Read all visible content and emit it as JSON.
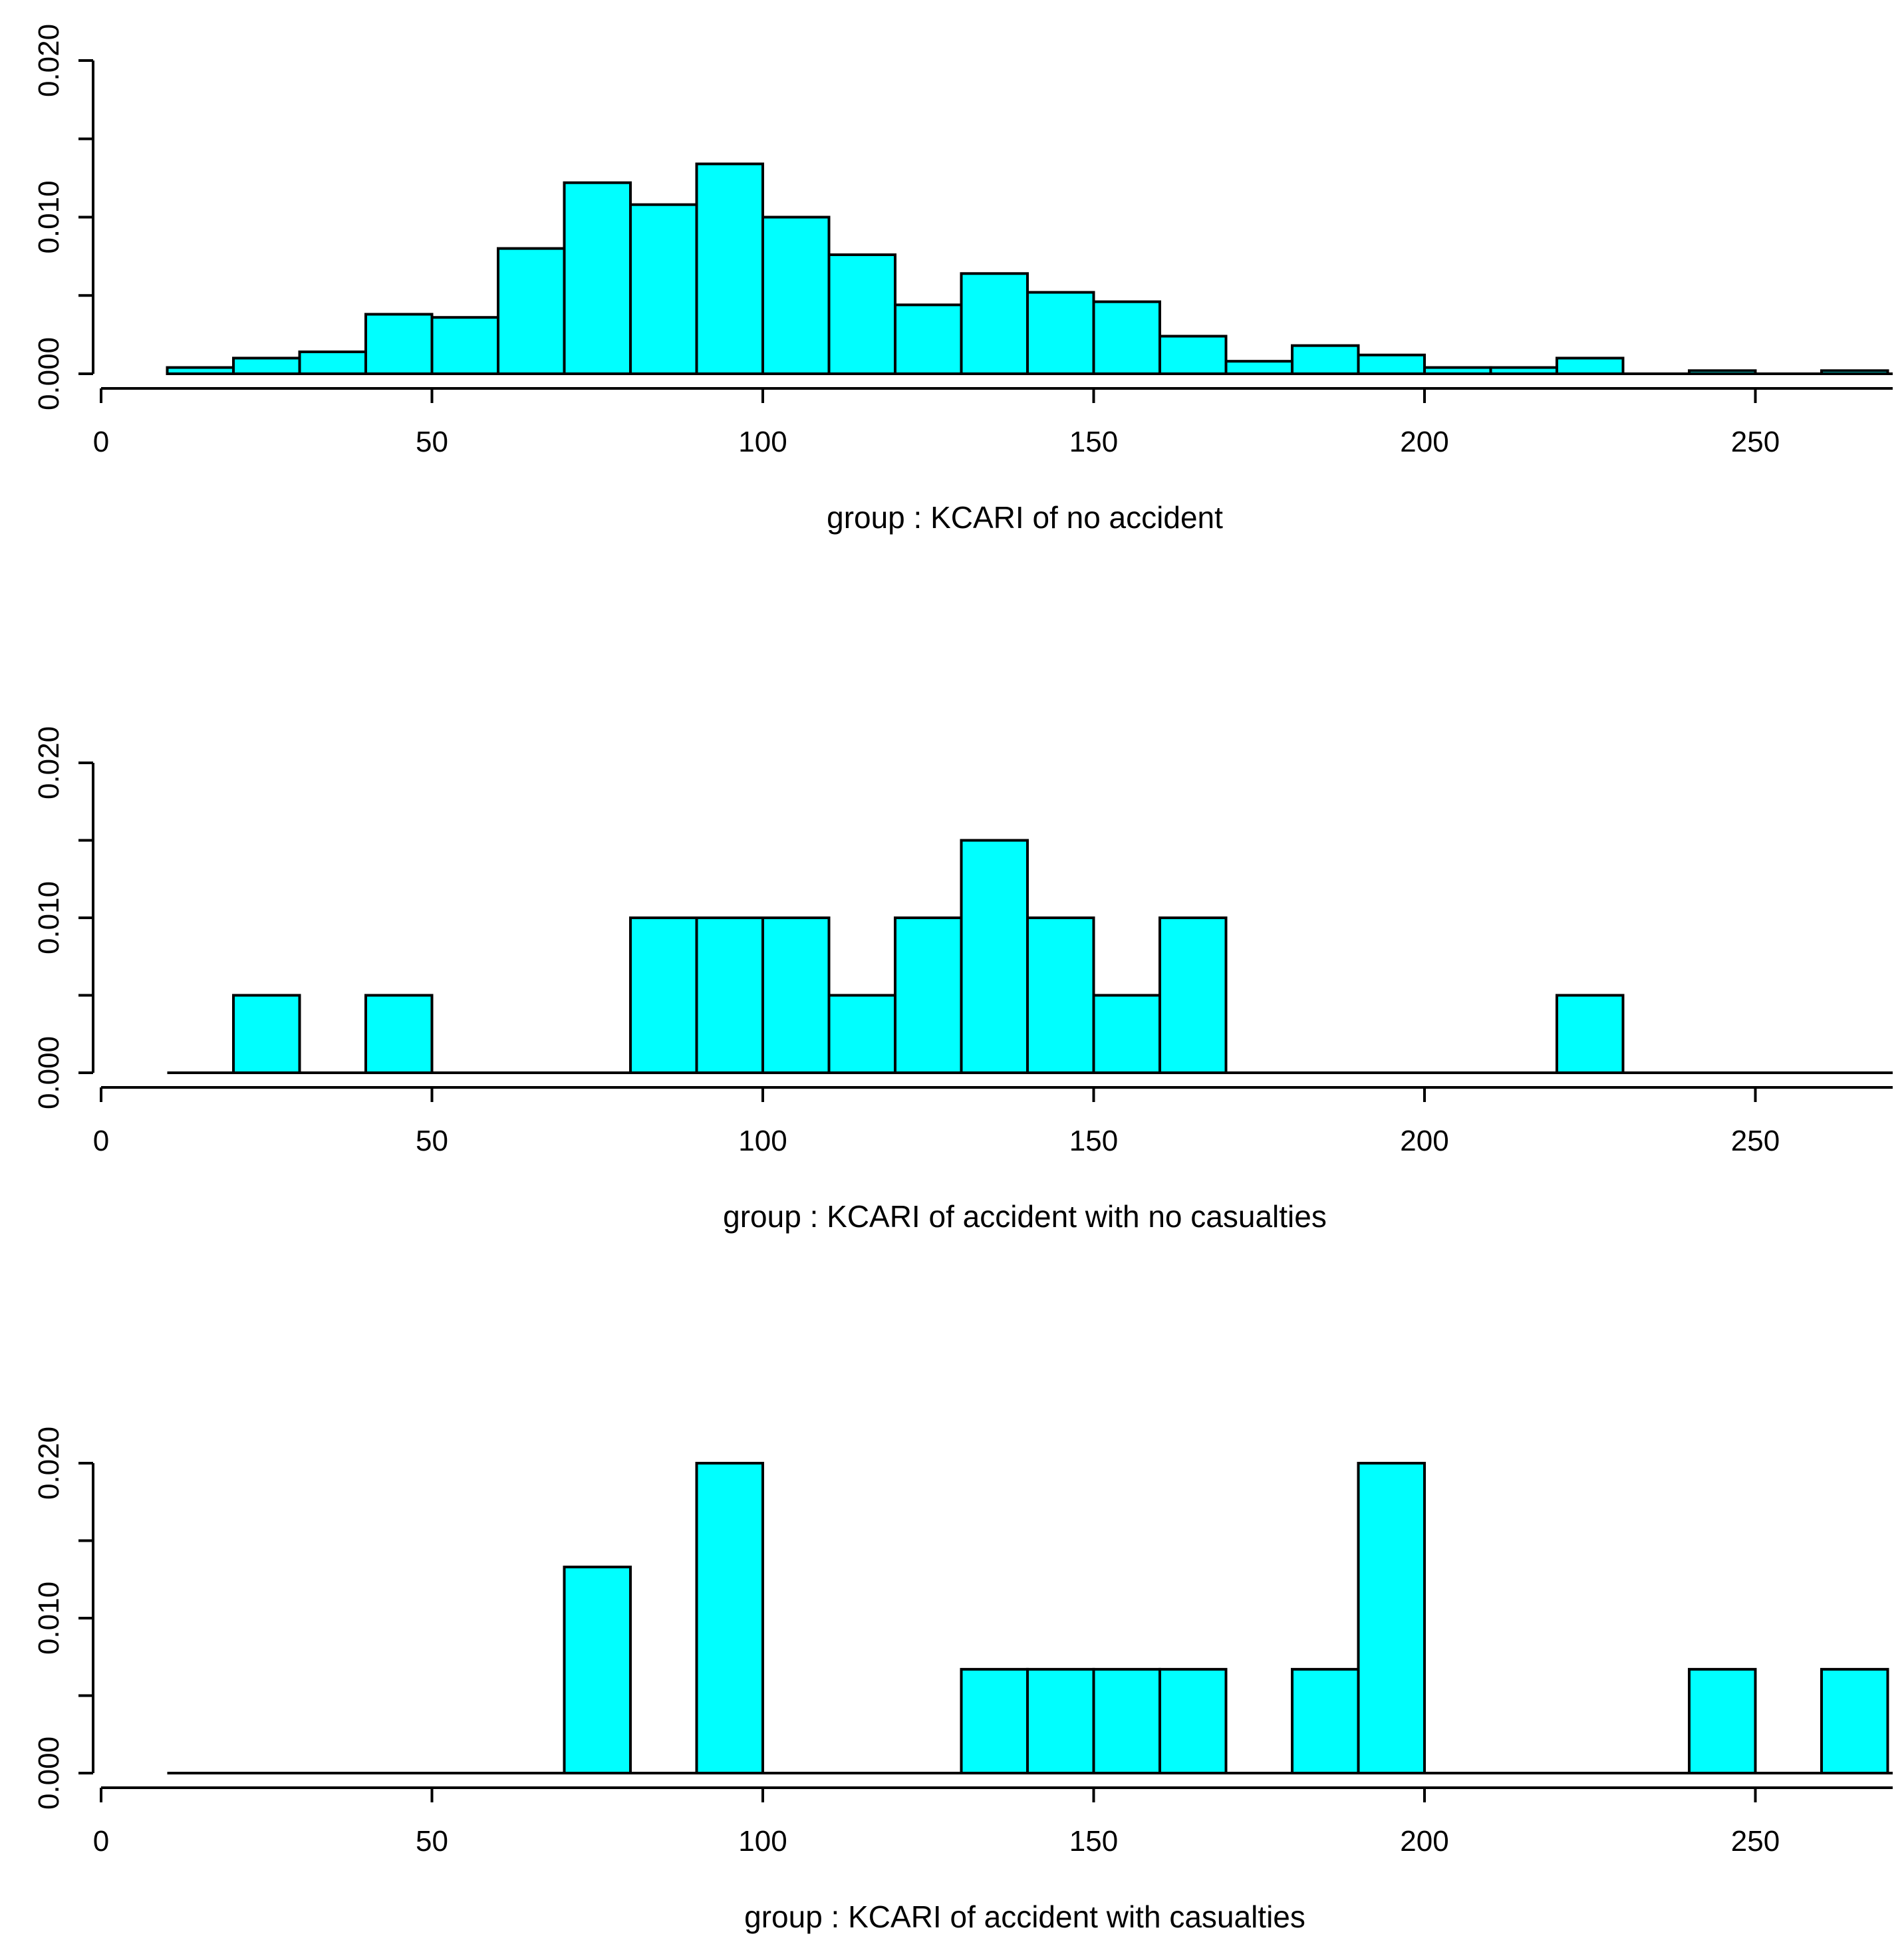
{
  "chart_data": [
    {
      "type": "bar",
      "subtype": "histogram",
      "title": "",
      "xlabel": "group :  KCARI of no accident",
      "ylabel": "",
      "xlim": [
        0,
        270
      ],
      "ylim": [
        0,
        0.02
      ],
      "xticks": [
        "0",
        "50",
        "100",
        "150",
        "200",
        "250"
      ],
      "yticks": [
        "0.000",
        "0.010",
        "0.020"
      ],
      "bin_edges": [
        10,
        20,
        30,
        40,
        50,
        60,
        70,
        80,
        90,
        100,
        110,
        120,
        130,
        140,
        150,
        160,
        170,
        180,
        190,
        200,
        210,
        220,
        230,
        240,
        250,
        260,
        270
      ],
      "values": [
        0.0004,
        0.001,
        0.0014,
        0.0038,
        0.0036,
        0.008,
        0.0122,
        0.0108,
        0.0134,
        0.01,
        0.0076,
        0.0044,
        0.0064,
        0.0052,
        0.0046,
        0.0024,
        0.0008,
        0.0018,
        0.0012,
        0.0004,
        0.0004,
        0.001,
        0,
        0.0002,
        0,
        0.0002
      ],
      "fill_color": "#00ffff",
      "edge_color": "#000000"
    },
    {
      "type": "bar",
      "subtype": "histogram",
      "title": "",
      "xlabel": "group :  KCARI of accident with no casualties",
      "ylabel": "",
      "xlim": [
        0,
        270
      ],
      "ylim": [
        0,
        0.02
      ],
      "xticks": [
        "0",
        "50",
        "100",
        "150",
        "200",
        "250"
      ],
      "yticks": [
        "0.000",
        "0.010",
        "0.020"
      ],
      "bin_edges": [
        10,
        20,
        30,
        40,
        50,
        60,
        70,
        80,
        90,
        100,
        110,
        120,
        130,
        140,
        150,
        160,
        170,
        180,
        190,
        200,
        210,
        220,
        230,
        240,
        250,
        260,
        270
      ],
      "values": [
        0,
        0.005,
        0,
        0.005,
        0,
        0,
        0,
        0.01,
        0.01,
        0.01,
        0.005,
        0.01,
        0.015,
        0.01,
        0.005,
        0.01,
        0,
        0,
        0,
        0,
        0,
        0.005,
        0,
        0,
        0,
        0
      ],
      "fill_color": "#00ffff",
      "edge_color": "#000000"
    },
    {
      "type": "bar",
      "subtype": "histogram",
      "title": "",
      "xlabel": "group :  KCARI of accident with casualties",
      "ylabel": "",
      "xlim": [
        0,
        270
      ],
      "ylim": [
        0,
        0.02
      ],
      "xticks": [
        "0",
        "50",
        "100",
        "150",
        "200",
        "250"
      ],
      "yticks": [
        "0.000",
        "0.010",
        "0.020"
      ],
      "bin_edges": [
        10,
        20,
        30,
        40,
        50,
        60,
        70,
        80,
        90,
        100,
        110,
        120,
        130,
        140,
        150,
        160,
        170,
        180,
        190,
        200,
        210,
        220,
        230,
        240,
        250,
        260,
        270
      ],
      "values": [
        0,
        0,
        0,
        0,
        0,
        0,
        0.0133,
        0,
        0.02,
        0,
        0,
        0,
        0.0067,
        0.0067,
        0.0067,
        0.0067,
        0,
        0.0067,
        0.02,
        0,
        0,
        0,
        0,
        0.0067,
        0,
        0.0067
      ],
      "fill_color": "#00ffff",
      "edge_color": "#000000"
    }
  ]
}
